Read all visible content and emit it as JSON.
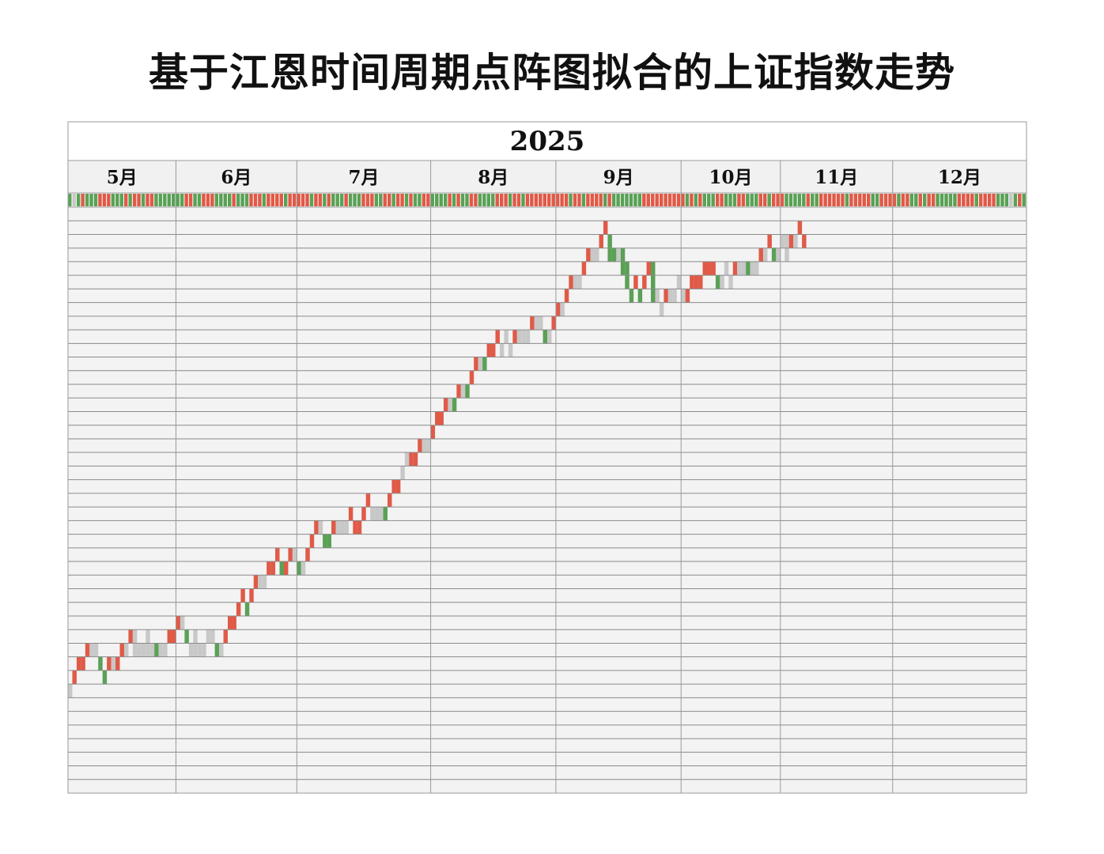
{
  "title": "基于江恩时间周期点阵图拟合的上证指数走势",
  "chart_data": {
    "type": "gann-time-cycle-dot-matrix",
    "year_label": "2025",
    "months": [
      "5月",
      "6月",
      "7月",
      "8月",
      "9月",
      "10月",
      "11月",
      "12月"
    ],
    "month_day_counts": [
      25,
      28,
      31,
      29,
      29,
      23,
      26,
      31
    ],
    "row_count": 43,
    "colors": {
      "up": "#e05a47",
      "down": "#5aa156",
      "flat": "#c8c8c8",
      "grid_bg": "#f3f3f3",
      "grid_line": "#8a8a8a",
      "header_bg": "#f1f1f1"
    },
    "day_strip": "gugrgggrrrgggrgrrgrrgggdgggrrgdrrrggggrdggrrrgrrrrgrrrrrgrrgrdgdrgggrrrdgrrgrrgrggrrggggrgrggrrggggrrrgrrgrrrrrrrrrrgrrgrrrrgrggdggggrrrrrrrrrrgrgrdggrrgdgrrgggrrgrrrgggggrgdrrrrrrdrrrrrggrrrrdrrggrgrrgggdgrrrrgrrrrgg",
    "steps": [
      {
        "day": 0,
        "top": 35,
        "bot": 35,
        "kind": "flat"
      },
      {
        "day": 1,
        "top": 34,
        "bot": 34,
        "kind": "up"
      },
      {
        "day": 2,
        "top": 33,
        "bot": 33,
        "kind": "up"
      },
      {
        "day": 3,
        "top": 33,
        "bot": 33,
        "kind": "up"
      },
      {
        "day": 4,
        "top": 32,
        "bot": 32,
        "kind": "up"
      },
      {
        "day": 5,
        "top": 32,
        "bot": 32,
        "kind": "flat"
      },
      {
        "day": 6,
        "top": 32,
        "bot": 32,
        "kind": "flat"
      },
      {
        "day": 7,
        "top": 33,
        "bot": 33,
        "kind": "down"
      },
      {
        "day": 8,
        "top": 34,
        "bot": 34,
        "kind": "down"
      },
      {
        "day": 9,
        "top": 33,
        "bot": 33,
        "kind": "up"
      },
      {
        "day": 10,
        "top": 33,
        "bot": 33,
        "kind": "flat"
      },
      {
        "day": 11,
        "top": 33,
        "bot": 33,
        "kind": "up"
      },
      {
        "day": 12,
        "top": 32,
        "bot": 32,
        "kind": "up"
      },
      {
        "day": 13,
        "top": 32,
        "bot": 32,
        "kind": "flat"
      },
      {
        "day": 14,
        "top": 31,
        "bot": 31,
        "kind": "up"
      },
      {
        "day": 15,
        "top": 31,
        "bot": 32,
        "kind": "flat"
      },
      {
        "day": 16,
        "top": 32,
        "bot": 32,
        "kind": "flat"
      },
      {
        "day": 17,
        "top": 32,
        "bot": 32,
        "kind": "flat"
      },
      {
        "day": 18,
        "top": 31,
        "bot": 32,
        "kind": "flat"
      },
      {
        "day": 19,
        "top": 32,
        "bot": 32,
        "kind": "flat"
      },
      {
        "day": 20,
        "top": 32,
        "bot": 32,
        "kind": "down"
      },
      {
        "day": 21,
        "top": 32,
        "bot": 32,
        "kind": "flat"
      },
      {
        "day": 22,
        "top": 32,
        "bot": 32,
        "kind": "flat"
      },
      {
        "day": 23,
        "top": 31,
        "bot": 31,
        "kind": "up"
      },
      {
        "day": 24,
        "top": 31,
        "bot": 31,
        "kind": "up"
      },
      {
        "day": 25,
        "top": 30,
        "bot": 30,
        "kind": "up"
      },
      {
        "day": 26,
        "top": 30,
        "bot": 30,
        "kind": "flat"
      },
      {
        "day": 27,
        "top": 31,
        "bot": 31,
        "kind": "down"
      },
      {
        "day": 28,
        "top": 32,
        "bot": 32,
        "kind": "flat"
      },
      {
        "day": 29,
        "top": 31,
        "bot": 32,
        "kind": "flat"
      },
      {
        "day": 30,
        "top": 32,
        "bot": 32,
        "kind": "flat"
      },
      {
        "day": 31,
        "top": 32,
        "bot": 32,
        "kind": "flat"
      },
      {
        "day": 32,
        "top": 31,
        "bot": 31,
        "kind": "flat"
      },
      {
        "day": 33,
        "top": 31,
        "bot": 31,
        "kind": "flat"
      },
      {
        "day": 34,
        "top": 32,
        "bot": 32,
        "kind": "down"
      },
      {
        "day": 35,
        "top": 32,
        "bot": 32,
        "kind": "flat"
      },
      {
        "day": 36,
        "top": 31,
        "bot": 31,
        "kind": "up"
      },
      {
        "day": 37,
        "top": 30,
        "bot": 30,
        "kind": "up"
      },
      {
        "day": 38,
        "top": 30,
        "bot": 30,
        "kind": "up"
      },
      {
        "day": 39,
        "top": 29,
        "bot": 29,
        "kind": "up"
      },
      {
        "day": 40,
        "top": 28,
        "bot": 28,
        "kind": "up"
      },
      {
        "day": 41,
        "top": 29,
        "bot": 29,
        "kind": "down"
      },
      {
        "day": 42,
        "top": 28,
        "bot": 28,
        "kind": "up"
      },
      {
        "day": 43,
        "top": 27,
        "bot": 27,
        "kind": "up"
      },
      {
        "day": 44,
        "top": 27,
        "bot": 27,
        "kind": "flat"
      },
      {
        "day": 45,
        "top": 27,
        "bot": 27,
        "kind": "flat"
      },
      {
        "day": 46,
        "top": 26,
        "bot": 26,
        "kind": "up"
      },
      {
        "day": 47,
        "top": 26,
        "bot": 26,
        "kind": "up"
      },
      {
        "day": 48,
        "top": 25,
        "bot": 25,
        "kind": "up"
      },
      {
        "day": 49,
        "top": 26,
        "bot": 26,
        "kind": "down"
      },
      {
        "day": 50,
        "top": 26,
        "bot": 26,
        "kind": "up"
      },
      {
        "day": 51,
        "top": 25,
        "bot": 25,
        "kind": "up"
      },
      {
        "day": 52,
        "top": 25,
        "bot": 25,
        "kind": "flat"
      },
      {
        "day": 53,
        "top": 26,
        "bot": 26,
        "kind": "down"
      },
      {
        "day": 54,
        "top": 26,
        "bot": 26,
        "kind": "flat"
      },
      {
        "day": 55,
        "top": 25,
        "bot": 25,
        "kind": "up"
      },
      {
        "day": 56,
        "top": 24,
        "bot": 24,
        "kind": "up"
      },
      {
        "day": 57,
        "top": 23,
        "bot": 23,
        "kind": "up"
      },
      {
        "day": 58,
        "top": 23,
        "bot": 23,
        "kind": "flat"
      },
      {
        "day": 59,
        "top": 24,
        "bot": 24,
        "kind": "down"
      },
      {
        "day": 60,
        "top": 24,
        "bot": 24,
        "kind": "down"
      },
      {
        "day": 61,
        "top": 23,
        "bot": 23,
        "kind": "up"
      },
      {
        "day": 62,
        "top": 23,
        "bot": 23,
        "kind": "flat"
      },
      {
        "day": 63,
        "top": 23,
        "bot": 23,
        "kind": "flat"
      },
      {
        "day": 64,
        "top": 23,
        "bot": 23,
        "kind": "flat"
      },
      {
        "day": 65,
        "top": 22,
        "bot": 22,
        "kind": "up"
      },
      {
        "day": 66,
        "top": 23,
        "bot": 23,
        "kind": "up"
      },
      {
        "day": 67,
        "top": 23,
        "bot": 23,
        "kind": "up"
      },
      {
        "day": 68,
        "top": 22,
        "bot": 22,
        "kind": "up"
      },
      {
        "day": 69,
        "top": 21,
        "bot": 21,
        "kind": "up"
      },
      {
        "day": 70,
        "top": 22,
        "bot": 22,
        "kind": "flat"
      },
      {
        "day": 71,
        "top": 22,
        "bot": 22,
        "kind": "flat"
      },
      {
        "day": 72,
        "top": 22,
        "bot": 22,
        "kind": "flat"
      },
      {
        "day": 73,
        "top": 22,
        "bot": 22,
        "kind": "down"
      },
      {
        "day": 74,
        "top": 21,
        "bot": 21,
        "kind": "up"
      },
      {
        "day": 75,
        "top": 20,
        "bot": 20,
        "kind": "up"
      },
      {
        "day": 76,
        "top": 20,
        "bot": 20,
        "kind": "up"
      },
      {
        "day": 77,
        "top": 19,
        "bot": 19,
        "kind": "flat"
      },
      {
        "day": 78,
        "top": 18,
        "bot": 18,
        "kind": "flat"
      },
      {
        "day": 79,
        "top": 18,
        "bot": 18,
        "kind": "up"
      },
      {
        "day": 80,
        "top": 18,
        "bot": 18,
        "kind": "up"
      },
      {
        "day": 81,
        "top": 17,
        "bot": 17,
        "kind": "up"
      },
      {
        "day": 82,
        "top": 17,
        "bot": 17,
        "kind": "flat"
      },
      {
        "day": 83,
        "top": 17,
        "bot": 17,
        "kind": "flat"
      },
      {
        "day": 84,
        "top": 16,
        "bot": 16,
        "kind": "up"
      },
      {
        "day": 85,
        "top": 15,
        "bot": 15,
        "kind": "up"
      },
      {
        "day": 86,
        "top": 15,
        "bot": 15,
        "kind": "up"
      },
      {
        "day": 87,
        "top": 14,
        "bot": 14,
        "kind": "up"
      },
      {
        "day": 88,
        "top": 14,
        "bot": 14,
        "kind": "flat"
      },
      {
        "day": 89,
        "top": 14,
        "bot": 14,
        "kind": "down"
      },
      {
        "day": 90,
        "top": 13,
        "bot": 13,
        "kind": "up"
      },
      {
        "day": 91,
        "top": 13,
        "bot": 13,
        "kind": "flat"
      },
      {
        "day": 92,
        "top": 13,
        "bot": 13,
        "kind": "down"
      },
      {
        "day": 93,
        "top": 12,
        "bot": 12,
        "kind": "up"
      },
      {
        "day": 94,
        "top": 11,
        "bot": 11,
        "kind": "up"
      },
      {
        "day": 95,
        "top": 11,
        "bot": 11,
        "kind": "flat"
      },
      {
        "day": 96,
        "top": 11,
        "bot": 11,
        "kind": "down"
      },
      {
        "day": 97,
        "top": 10,
        "bot": 10,
        "kind": "up"
      },
      {
        "day": 98,
        "top": 10,
        "bot": 10,
        "kind": "up"
      },
      {
        "day": 99,
        "top": 9,
        "bot": 9,
        "kind": "up"
      },
      {
        "day": 100,
        "top": 10,
        "bot": 10,
        "kind": "flat"
      },
      {
        "day": 101,
        "top": 9,
        "bot": 9,
        "kind": "flat"
      },
      {
        "day": 102,
        "top": 10,
        "bot": 10,
        "kind": "flat"
      },
      {
        "day": 103,
        "top": 9,
        "bot": 9,
        "kind": "up"
      },
      {
        "day": 104,
        "top": 9,
        "bot": 9,
        "kind": "flat"
      },
      {
        "day": 105,
        "top": 9,
        "bot": 9,
        "kind": "flat"
      },
      {
        "day": 106,
        "top": 9,
        "bot": 9,
        "kind": "flat"
      },
      {
        "day": 107,
        "top": 8,
        "bot": 8,
        "kind": "up"
      },
      {
        "day": 108,
        "top": 8,
        "bot": 8,
        "kind": "flat"
      },
      {
        "day": 109,
        "top": 8,
        "bot": 8,
        "kind": "flat"
      },
      {
        "day": 110,
        "top": 9,
        "bot": 9,
        "kind": "down"
      },
      {
        "day": 111,
        "top": 9,
        "bot": 9,
        "kind": "flat"
      },
      {
        "day": 112,
        "top": 8,
        "bot": 8,
        "kind": "up"
      },
      {
        "day": 113,
        "top": 7,
        "bot": 7,
        "kind": "up"
      },
      {
        "day": 114,
        "top": 7,
        "bot": 7,
        "kind": "flat"
      },
      {
        "day": 115,
        "top": 6,
        "bot": 6,
        "kind": "up"
      },
      {
        "day": 116,
        "top": 5,
        "bot": 5,
        "kind": "up"
      },
      {
        "day": 117,
        "top": 5,
        "bot": 5,
        "kind": "flat"
      },
      {
        "day": 118,
        "top": 5,
        "bot": 5,
        "kind": "flat"
      },
      {
        "day": 119,
        "top": 4,
        "bot": 4,
        "kind": "up"
      },
      {
        "day": 120,
        "top": 3,
        "bot": 3,
        "kind": "up"
      },
      {
        "day": 121,
        "top": 3,
        "bot": 3,
        "kind": "flat"
      },
      {
        "day": 122,
        "top": 3,
        "bot": 3,
        "kind": "flat"
      },
      {
        "day": 123,
        "top": 2,
        "bot": 2,
        "kind": "up"
      },
      {
        "day": 124,
        "top": 1,
        "bot": 1,
        "kind": "up"
      },
      {
        "day": 125,
        "top": 2,
        "bot": 3,
        "kind": "down"
      },
      {
        "day": 126,
        "top": 3,
        "bot": 3,
        "kind": "down"
      },
      {
        "day": 127,
        "top": 3,
        "bot": 3,
        "kind": "flat"
      },
      {
        "day": 128,
        "top": 3,
        "bot": 4,
        "kind": "down"
      },
      {
        "day": 129,
        "top": 4,
        "bot": 5,
        "kind": "down"
      },
      {
        "day": 130,
        "top": 6,
        "bot": 6,
        "kind": "down"
      },
      {
        "day": 131,
        "top": 5,
        "bot": 5,
        "kind": "up"
      },
      {
        "day": 132,
        "top": 6,
        "bot": 6,
        "kind": "down"
      },
      {
        "day": 133,
        "top": 5,
        "bot": 5,
        "kind": "up"
      },
      {
        "day": 134,
        "top": 4,
        "bot": 4,
        "kind": "up"
      },
      {
        "day": 135,
        "top": 4,
        "bot": 6,
        "kind": "down"
      },
      {
        "day": 136,
        "top": 6,
        "bot": 6,
        "kind": "flat"
      },
      {
        "day": 137,
        "top": 7,
        "bot": 7,
        "kind": "flat"
      },
      {
        "day": 138,
        "top": 6,
        "bot": 6,
        "kind": "up"
      },
      {
        "day": 139,
        "top": 6,
        "bot": 6,
        "kind": "flat"
      },
      {
        "day": 140,
        "top": 6,
        "bot": 6,
        "kind": "flat"
      },
      {
        "day": 141,
        "top": 5,
        "bot": 5,
        "kind": "flat"
      },
      {
        "day": 142,
        "top": 6,
        "bot": 6,
        "kind": "flat"
      },
      {
        "day": 143,
        "top": 6,
        "bot": 6,
        "kind": "up"
      },
      {
        "day": 144,
        "top": 5,
        "bot": 5,
        "kind": "up"
      },
      {
        "day": 145,
        "top": 5,
        "bot": 5,
        "kind": "up"
      },
      {
        "day": 146,
        "top": 5,
        "bot": 5,
        "kind": "up"
      },
      {
        "day": 147,
        "top": 4,
        "bot": 4,
        "kind": "up"
      },
      {
        "day": 148,
        "top": 4,
        "bot": 4,
        "kind": "up"
      },
      {
        "day": 149,
        "top": 4,
        "bot": 4,
        "kind": "up"
      },
      {
        "day": 150,
        "top": 5,
        "bot": 5,
        "kind": "down"
      },
      {
        "day": 151,
        "top": 5,
        "bot": 5,
        "kind": "flat"
      },
      {
        "day": 152,
        "top": 4,
        "bot": 4,
        "kind": "flat"
      },
      {
        "day": 153,
        "top": 5,
        "bot": 5,
        "kind": "flat"
      },
      {
        "day": 154,
        "top": 4,
        "bot": 4,
        "kind": "up"
      },
      {
        "day": 155,
        "top": 4,
        "bot": 4,
        "kind": "flat"
      },
      {
        "day": 156,
        "top": 4,
        "bot": 4,
        "kind": "flat"
      },
      {
        "day": 157,
        "top": 4,
        "bot": 4,
        "kind": "down"
      },
      {
        "day": 158,
        "top": 4,
        "bot": 4,
        "kind": "flat"
      },
      {
        "day": 159,
        "top": 4,
        "bot": 4,
        "kind": "flat"
      },
      {
        "day": 160,
        "top": 3,
        "bot": 3,
        "kind": "up"
      },
      {
        "day": 161,
        "top": 3,
        "bot": 3,
        "kind": "flat"
      },
      {
        "day": 162,
        "top": 2,
        "bot": 2,
        "kind": "up"
      },
      {
        "day": 163,
        "top": 3,
        "bot": 3,
        "kind": "down"
      },
      {
        "day": 164,
        "top": 3,
        "bot": 3,
        "kind": "flat"
      },
      {
        "day": 165,
        "top": 2,
        "bot": 2,
        "kind": "flat"
      },
      {
        "day": 166,
        "top": 2,
        "bot": 3,
        "kind": "flat"
      },
      {
        "day": 167,
        "top": 2,
        "bot": 2,
        "kind": "up"
      },
      {
        "day": 168,
        "top": 2,
        "bot": 2,
        "kind": "flat"
      },
      {
        "day": 169,
        "top": 1,
        "bot": 1,
        "kind": "up"
      },
      {
        "day": 170,
        "top": 2,
        "bot": 2,
        "kind": "up"
      }
    ]
  }
}
